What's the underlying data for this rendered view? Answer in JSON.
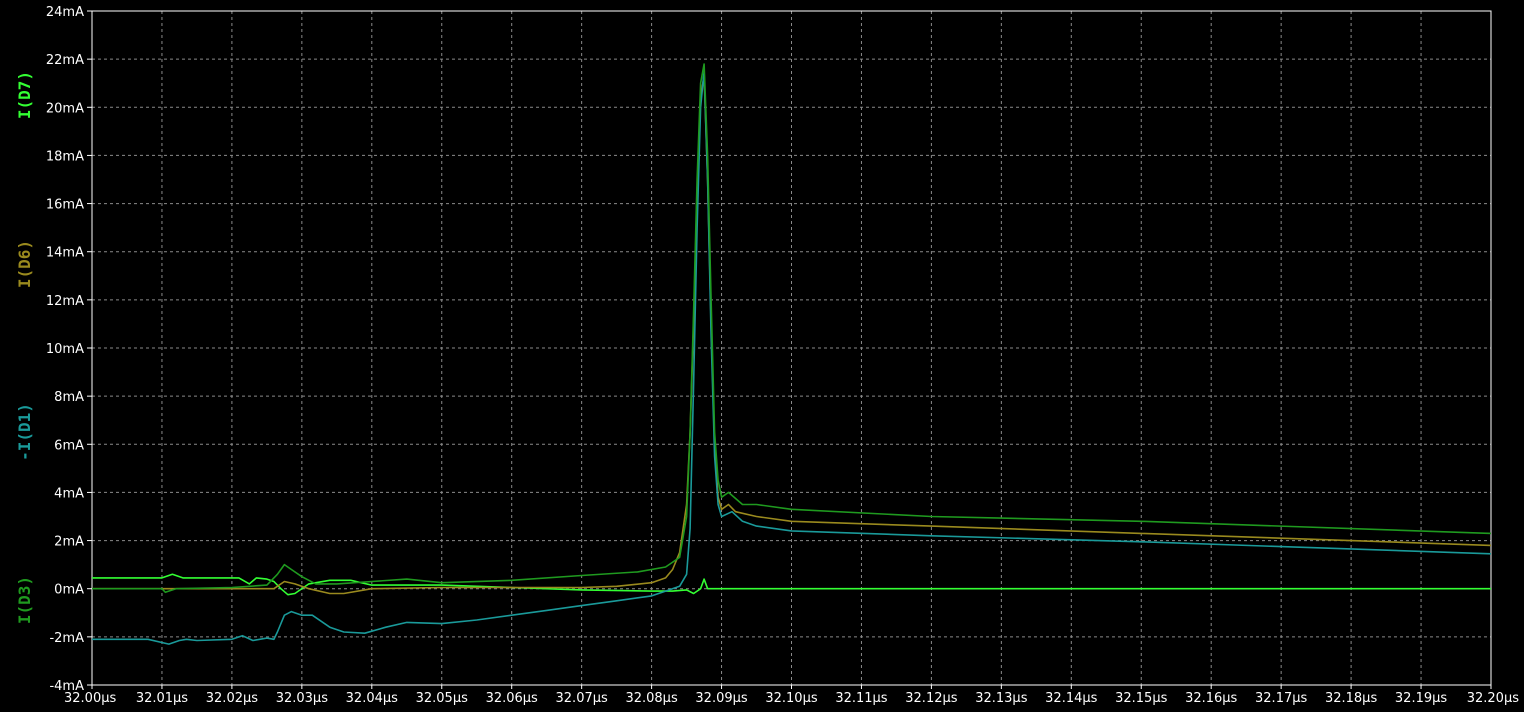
{
  "chart_data": {
    "type": "line",
    "xlim": [
      32.0,
      32.2
    ],
    "ylim": [
      -4,
      24
    ],
    "grid": true,
    "x_ticks": [
      "32.00µs",
      "32.01µs",
      "32.02µs",
      "32.03µs",
      "32.04µs",
      "32.05µs",
      "32.06µs",
      "32.07µs",
      "32.08µs",
      "32.09µs",
      "32.10µs",
      "32.11µs",
      "32.12µs",
      "32.13µs",
      "32.14µs",
      "32.15µs",
      "32.16µs",
      "32.17µs",
      "32.18µs",
      "32.19µs",
      "32.20µs"
    ],
    "y_ticks": [
      "-4mA",
      "-2mA",
      "0mA",
      "2mA",
      "4mA",
      "6mA",
      "8mA",
      "10mA",
      "12mA",
      "14mA",
      "16mA",
      "18mA",
      "20mA",
      "22mA",
      "24mA"
    ],
    "y_labels": [
      {
        "text": "I(D7)",
        "color": "#33ff33"
      },
      {
        "text": "I(D6)",
        "color": "#9a8a1e"
      },
      {
        "text": "-I(D1)",
        "color": "#1a9a9a"
      },
      {
        "text": "I(D3)",
        "color": "#1f9a1f"
      }
    ],
    "series": [
      {
        "name": "I(D7)",
        "color": "#33ff33",
        "x": [
          32.0,
          32.005,
          32.01,
          32.0115,
          32.013,
          32.016,
          32.02,
          32.021,
          32.0225,
          32.0235,
          32.025,
          32.026,
          32.027,
          32.028,
          32.029,
          32.031,
          32.034,
          32.037,
          32.04,
          32.045,
          32.05,
          32.06,
          32.07,
          32.08,
          32.083,
          32.085,
          32.086,
          32.0865,
          32.087,
          32.0875,
          32.088,
          32.09,
          32.1,
          32.2
        ],
        "y": [
          0.45,
          0.45,
          0.45,
          0.6,
          0.45,
          0.45,
          0.45,
          0.45,
          0.2,
          0.45,
          0.4,
          0.3,
          0.0,
          -0.25,
          -0.2,
          0.2,
          0.35,
          0.35,
          0.15,
          0.15,
          0.15,
          0.05,
          -0.05,
          -0.1,
          -0.1,
          -0.05,
          -0.2,
          -0.1,
          0.0,
          0.4,
          0.0,
          0.0,
          0.0,
          0.0
        ]
      },
      {
        "name": "I(D6)",
        "color": "#9a8a1e",
        "x": [
          32.0,
          32.01,
          32.02,
          32.026,
          32.0275,
          32.029,
          32.031,
          32.034,
          32.036,
          32.04,
          32.05,
          32.06,
          32.07,
          32.075,
          32.08,
          32.082,
          32.083,
          32.084,
          32.085,
          32.0855,
          32.086,
          32.0865,
          32.087,
          32.0875,
          32.088,
          32.0885,
          32.089,
          32.0895,
          32.09,
          32.091,
          32.092,
          32.095,
          32.1,
          32.12,
          32.15,
          32.2
        ],
        "y": [
          0.0,
          0.0,
          0.0,
          0.0,
          0.3,
          0.2,
          0.0,
          -0.2,
          -0.2,
          0.0,
          0.05,
          0.05,
          0.05,
          0.1,
          0.25,
          0.45,
          0.8,
          1.5,
          3.5,
          6.5,
          11.0,
          16.5,
          20.5,
          21.3,
          17.0,
          11.0,
          6.0,
          3.8,
          3.3,
          3.5,
          3.2,
          3.0,
          2.8,
          2.6,
          2.3,
          1.8
        ]
      },
      {
        "name": "-I(D1)",
        "color": "#1a9a9a",
        "x": [
          32.0,
          32.008,
          32.011,
          32.0125,
          32.0135,
          32.015,
          32.02,
          32.0215,
          32.023,
          32.025,
          32.026,
          32.0265,
          32.0275,
          32.0285,
          32.03,
          32.0315,
          32.034,
          32.036,
          32.039,
          32.042,
          32.045,
          32.05,
          32.055,
          32.06,
          32.065,
          32.07,
          32.075,
          32.08,
          32.082,
          32.084,
          32.085,
          32.0855,
          32.086,
          32.0865,
          32.087,
          32.0875,
          32.088,
          32.0885,
          32.089,
          32.0895,
          32.09,
          32.0915,
          32.093,
          32.095,
          32.1,
          32.12,
          32.15,
          32.2
        ],
        "y": [
          -2.1,
          -2.1,
          -2.3,
          -2.15,
          -2.1,
          -2.15,
          -2.1,
          -1.95,
          -2.15,
          -2.05,
          -2.1,
          -1.8,
          -1.1,
          -0.95,
          -1.1,
          -1.1,
          -1.6,
          -1.8,
          -1.85,
          -1.6,
          -1.4,
          -1.45,
          -1.3,
          -1.1,
          -0.9,
          -0.7,
          -0.5,
          -0.3,
          -0.1,
          0.1,
          0.6,
          2.5,
          8.5,
          15.0,
          20.0,
          21.5,
          17.0,
          10.5,
          5.5,
          3.5,
          3.0,
          3.2,
          2.8,
          2.6,
          2.4,
          2.2,
          1.95,
          1.45
        ]
      },
      {
        "name": "I(D3)",
        "color": "#1f9a1f",
        "x": [
          32.0,
          32.01,
          32.0105,
          32.012,
          32.02,
          32.025,
          32.0265,
          32.0275,
          32.0285,
          32.03,
          32.032,
          32.035,
          32.04,
          32.045,
          32.05,
          32.06,
          32.07,
          32.078,
          32.082,
          32.084,
          32.085,
          32.0855,
          32.086,
          32.0865,
          32.087,
          32.0875,
          32.088,
          32.0885,
          32.089,
          32.0895,
          32.09,
          32.091,
          32.093,
          32.095,
          32.1,
          32.12,
          32.15,
          32.2
        ],
        "y": [
          0.0,
          0.0,
          -0.15,
          0.0,
          0.05,
          0.15,
          0.6,
          1.0,
          0.8,
          0.5,
          0.2,
          0.2,
          0.3,
          0.4,
          0.25,
          0.35,
          0.55,
          0.7,
          0.9,
          1.3,
          3.0,
          6.5,
          11.5,
          17.0,
          21.0,
          21.8,
          18.0,
          12.0,
          6.5,
          4.5,
          3.8,
          4.0,
          3.5,
          3.5,
          3.3,
          3.0,
          2.8,
          2.3
        ]
      }
    ]
  }
}
